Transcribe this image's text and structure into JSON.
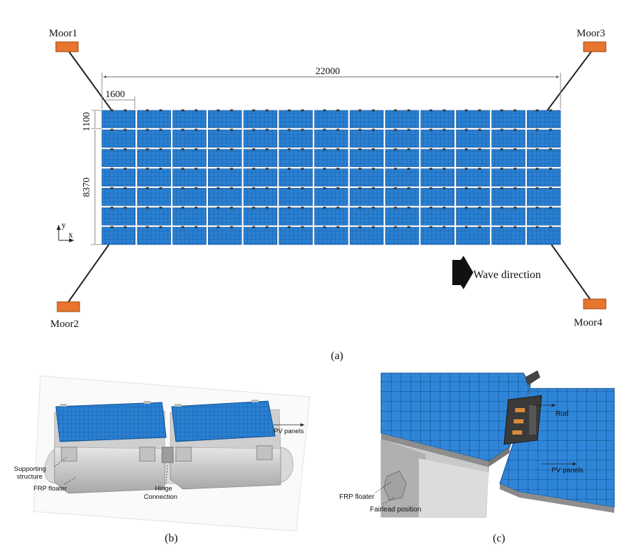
{
  "panel_a": {
    "label": "(a)",
    "moorings": [
      "Moor1",
      "Moor2",
      "Moor3",
      "Moor4"
    ],
    "dim_total_length": "22000",
    "dim_module_length": "1600",
    "dim_module_width": "1100",
    "dim_array_width": "8370",
    "axis_x": "x",
    "axis_y": "y",
    "wave_label": "Wave direction",
    "grid_columns": 13,
    "grid_rows": 7,
    "colors": {
      "panel": "#1e73c8",
      "panel_dark": "#0f4f94",
      "mooring_block": "#e8742e"
    }
  },
  "panel_b": {
    "label": "(b)",
    "pv_panels": "PV panels",
    "supporting_structure_line1": "Supporting",
    "supporting_structure_line2": "structure",
    "frp_floater": "FRP floater",
    "hinge_line1": "Hinge",
    "hinge_line2": "Connection"
  },
  "panel_c": {
    "label": "(c)",
    "rod": "Rod",
    "pv_panels": "PV panels",
    "frp_floater": "FRP floater",
    "fairlead": "Fairlead position"
  }
}
